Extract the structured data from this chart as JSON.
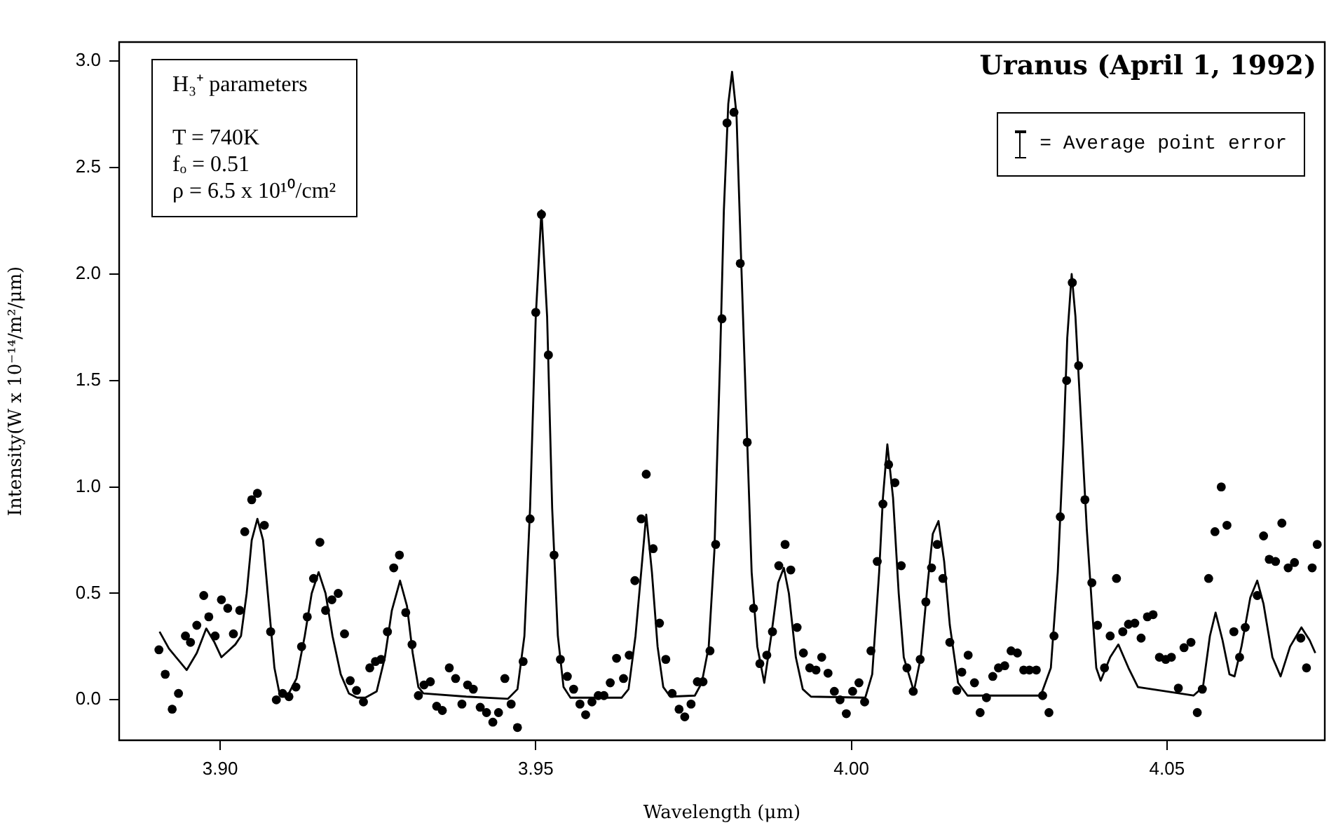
{
  "chart_data": {
    "type": "scatter",
    "title": "Uranus (April 1, 1992)",
    "xlabel": "Wavelength (μm)",
    "ylabel": "Intensity(W x 10⁻¹⁴/m²/μm)",
    "annotations": [
      "H₃⁺ parameters\n\nT = 740K\nfₒ = 0.51\nρ = 6.5 x 10¹⁰/cm²",
      "= Average point error"
    ],
    "xlim": [
      3.884,
      4.075
    ],
    "ylim": [
      -0.19,
      3.09
    ],
    "xticks": [
      {
        "value": 3.9,
        "label": "3.90"
      },
      {
        "value": 3.95,
        "label": "3.95"
      },
      {
        "value": 4.0,
        "label": "4.00"
      },
      {
        "value": 4.05,
        "label": "4.05"
      }
    ],
    "yticks": [
      {
        "value": 0,
        "label": "0.0"
      },
      {
        "value": 0.5,
        "label": "0.5"
      },
      {
        "value": 1,
        "label": "1.0"
      },
      {
        "value": 1.5,
        "label": "1.5"
      },
      {
        "value": 2,
        "label": "2.0"
      },
      {
        "value": 2.5,
        "label": "2.5"
      },
      {
        "value": 3,
        "label": "3.0"
      }
    ],
    "series": [
      {
        "type": "scatter",
        "marker": "circle",
        "color": "#000000",
        "x": [
          3.8903,
          3.8913,
          3.8924,
          3.8934,
          3.8945,
          3.8953,
          3.8963,
          3.8974,
          3.8982,
          3.8992,
          3.9002,
          3.9012,
          3.9021,
          3.9031,
          3.9039,
          3.905,
          3.9059,
          3.907,
          3.908,
          3.9089,
          3.9099,
          3.9109,
          3.912,
          3.9129,
          3.9138,
          3.9148,
          3.9158,
          3.9167,
          3.9177,
          3.9187,
          3.9197,
          3.9206,
          3.9216,
          3.9227,
          3.9237,
          3.9246,
          3.9255,
          3.9265,
          3.9275,
          3.9284,
          3.9294,
          3.9304,
          3.9314,
          3.9323,
          3.9333,
          3.9343,
          3.9352,
          3.9363,
          3.9373,
          3.9383,
          3.9392,
          3.9401,
          3.9412,
          3.9422,
          3.9432,
          3.9441,
          3.9451,
          3.9461,
          3.9471,
          3.948,
          3.9491,
          3.95,
          3.9509,
          3.952,
          3.9529,
          3.9539,
          3.955,
          3.956,
          3.957,
          3.9579,
          3.9589,
          3.9599,
          3.9608,
          3.9618,
          3.9628,
          3.9639,
          3.9648,
          3.9657,
          3.9667,
          3.9675,
          3.9686,
          3.9696,
          3.9706,
          3.9716,
          3.9727,
          3.9736,
          3.9746,
          3.9756,
          3.9765,
          3.9776,
          3.9785,
          3.9795,
          3.9803,
          3.9814,
          3.9824,
          3.9835,
          3.9845,
          3.9855,
          3.9866,
          3.9875,
          3.9885,
          3.9895,
          3.9904,
          3.9914,
          3.9924,
          3.9934,
          3.9944,
          3.9953,
          3.9963,
          3.9973,
          3.9982,
          3.9992,
          4.0002,
          4.0012,
          4.0021,
          4.0031,
          4.0041,
          4.005,
          4.0059,
          4.0069,
          4.0079,
          4.0088,
          4.0098,
          4.0109,
          4.0118,
          4.0127,
          4.0136,
          4.0145,
          4.0156,
          4.0167,
          4.0175,
          4.0185,
          4.0195,
          4.0204,
          4.0214,
          4.0224,
          4.0233,
          4.0243,
          4.0253,
          4.0263,
          4.0273,
          4.0282,
          4.0293,
          4.0303,
          4.0313,
          4.0321,
          4.0331,
          4.0341,
          4.035,
          4.036,
          4.037,
          4.0381,
          4.039,
          4.0401,
          4.041,
          4.042,
          4.043,
          4.0439,
          4.0449,
          4.0459,
          4.0469,
          4.0478,
          4.0488,
          4.0498,
          4.0507,
          4.0518,
          4.0527,
          4.0538,
          4.0548,
          4.0556,
          4.0566,
          4.0576,
          4.0586,
          4.0595,
          4.0606,
          4.0615,
          4.0624,
          4.0643,
          4.0653,
          4.0662,
          4.0672,
          4.0682,
          4.0692,
          4.0702,
          4.0712,
          4.0721,
          4.073,
          4.0738
        ],
        "values": [
          0.235,
          0.12,
          -0.044,
          0.03,
          0.3,
          0.27,
          0.35,
          0.49,
          0.39,
          0.3,
          0.47,
          0.43,
          0.31,
          0.42,
          0.79,
          0.94,
          0.97,
          0.82,
          0.32,
          0.0,
          0.03,
          0.015,
          0.06,
          0.25,
          0.39,
          0.57,
          0.74,
          0.42,
          0.47,
          0.5,
          0.31,
          0.09,
          0.044,
          -0.01,
          0.15,
          0.18,
          0.19,
          0.32,
          0.62,
          0.68,
          0.41,
          0.26,
          0.02,
          0.07,
          0.085,
          -0.03,
          -0.05,
          0.15,
          0.1,
          -0.02,
          0.07,
          0.05,
          -0.035,
          -0.06,
          -0.105,
          -0.06,
          0.1,
          -0.02,
          -0.13,
          0.18,
          0.85,
          1.82,
          2.28,
          1.62,
          0.68,
          0.19,
          0.11,
          0.05,
          -0.02,
          -0.07,
          -0.01,
          0.02,
          0.02,
          0.08,
          0.195,
          0.1,
          0.21,
          0.56,
          0.85,
          1.06,
          0.71,
          0.36,
          0.19,
          0.03,
          -0.044,
          -0.08,
          -0.02,
          0.085,
          0.085,
          0.23,
          0.73,
          1.79,
          2.71,
          2.76,
          2.05,
          1.21,
          0.43,
          0.17,
          0.21,
          0.32,
          0.63,
          0.73,
          0.61,
          0.34,
          0.22,
          0.15,
          0.14,
          0.2,
          0.125,
          0.04,
          0.0,
          -0.065,
          0.04,
          0.08,
          -0.01,
          0.23,
          0.65,
          0.92,
          1.105,
          1.02,
          0.63,
          0.15,
          0.04,
          0.19,
          0.46,
          0.62,
          0.73,
          0.57,
          0.27,
          0.044,
          0.13,
          0.21,
          0.08,
          -0.06,
          0.01,
          0.11,
          0.15,
          0.16,
          0.23,
          0.22,
          0.14,
          0.14,
          0.14,
          0.02,
          -0.06,
          0.3,
          0.86,
          1.5,
          1.96,
          1.57,
          0.94,
          0.55,
          0.35,
          0.15,
          0.3,
          0.57,
          0.32,
          0.355,
          0.36,
          0.29,
          0.39,
          0.4,
          0.2,
          0.19,
          0.2,
          0.055,
          0.245,
          0.27,
          -0.06,
          0.05,
          0.57,
          0.79,
          1.0,
          0.82,
          0.32,
          0.2,
          0.34,
          0.49,
          0.77,
          0.66,
          0.65,
          0.83,
          0.62,
          0.645,
          0.29,
          0.15,
          0.62,
          0.73
        ]
      },
      {
        "type": "line",
        "marker": "none",
        "line_style": "solid",
        "color": "#000000",
        "x": [
          3.8904,
          3.8919,
          3.8947,
          3.8963,
          3.8978,
          3.8991,
          3.9002,
          3.9013,
          3.9024,
          3.9033,
          3.9042,
          3.905,
          3.9059,
          3.9068,
          3.9077,
          3.9086,
          3.9094,
          3.9107,
          3.9121,
          3.9134,
          3.9145,
          3.9156,
          3.9167,
          3.9178,
          3.9191,
          3.9204,
          3.9217,
          3.923,
          3.9248,
          3.9261,
          3.9272,
          3.9285,
          3.9296,
          3.9305,
          3.9314,
          3.9322,
          3.939,
          3.9456,
          3.9471,
          3.9482,
          3.9491,
          3.95,
          3.9509,
          3.9518,
          3.9526,
          3.9535,
          3.9544,
          3.9555,
          3.9636,
          3.9647,
          3.9658,
          3.9667,
          3.9675,
          3.9684,
          3.9693,
          3.9702,
          3.9713,
          3.9752,
          3.9763,
          3.9774,
          3.9783,
          3.9792,
          3.9798,
          3.9805,
          3.9811,
          3.9818,
          3.9825,
          3.9834,
          3.9842,
          3.9851,
          3.9862,
          3.9873,
          3.9884,
          3.9893,
          3.9901,
          3.9912,
          3.9923,
          3.9936,
          4.0022,
          4.0033,
          4.0044,
          4.005,
          4.0057,
          4.0066,
          4.0075,
          4.0083,
          4.0099,
          4.011,
          4.0121,
          4.0129,
          4.0138,
          4.0147,
          4.0156,
          4.0169,
          4.0184,
          4.03,
          4.0316,
          4.0327,
          4.0336,
          4.0342,
          4.0349,
          4.0355,
          4.0364,
          4.0373,
          4.0382,
          4.0388,
          4.0395,
          4.041,
          4.0423,
          4.0439,
          4.0454,
          4.0542,
          4.0557,
          4.0568,
          4.0577,
          4.0588,
          4.0599,
          4.0607,
          4.0618,
          4.0632,
          4.0643,
          4.0653,
          4.0667,
          4.068,
          4.0695,
          4.0713,
          4.0726,
          4.0735
        ],
        "values": [
          0.32,
          0.24,
          0.14,
          0.22,
          0.335,
          0.27,
          0.2,
          0.23,
          0.26,
          0.3,
          0.5,
          0.75,
          0.85,
          0.75,
          0.45,
          0.15,
          0.03,
          0.02,
          0.1,
          0.3,
          0.5,
          0.6,
          0.5,
          0.3,
          0.12,
          0.03,
          0.01,
          0.01,
          0.04,
          0.2,
          0.42,
          0.56,
          0.44,
          0.22,
          0.06,
          0.03,
          0.015,
          0.005,
          0.05,
          0.3,
          0.9,
          1.8,
          2.3,
          1.8,
          0.9,
          0.3,
          0.06,
          0.01,
          0.01,
          0.05,
          0.3,
          0.6,
          0.87,
          0.6,
          0.25,
          0.06,
          0.015,
          0.02,
          0.08,
          0.25,
          0.7,
          1.6,
          2.3,
          2.8,
          2.95,
          2.75,
          2.1,
          1.3,
          0.6,
          0.25,
          0.08,
          0.3,
          0.55,
          0.62,
          0.5,
          0.2,
          0.05,
          0.015,
          0.01,
          0.12,
          0.6,
          0.95,
          1.2,
          0.95,
          0.5,
          0.2,
          0.04,
          0.2,
          0.55,
          0.78,
          0.84,
          0.65,
          0.35,
          0.08,
          0.02,
          0.02,
          0.15,
          0.6,
          1.2,
          1.7,
          2.0,
          1.8,
          1.3,
          0.8,
          0.4,
          0.15,
          0.09,
          0.2,
          0.26,
          0.15,
          0.06,
          0.02,
          0.06,
          0.3,
          0.41,
          0.28,
          0.12,
          0.11,
          0.25,
          0.48,
          0.56,
          0.45,
          0.2,
          0.11,
          0.25,
          0.34,
          0.28,
          0.22
        ]
      }
    ]
  }
}
